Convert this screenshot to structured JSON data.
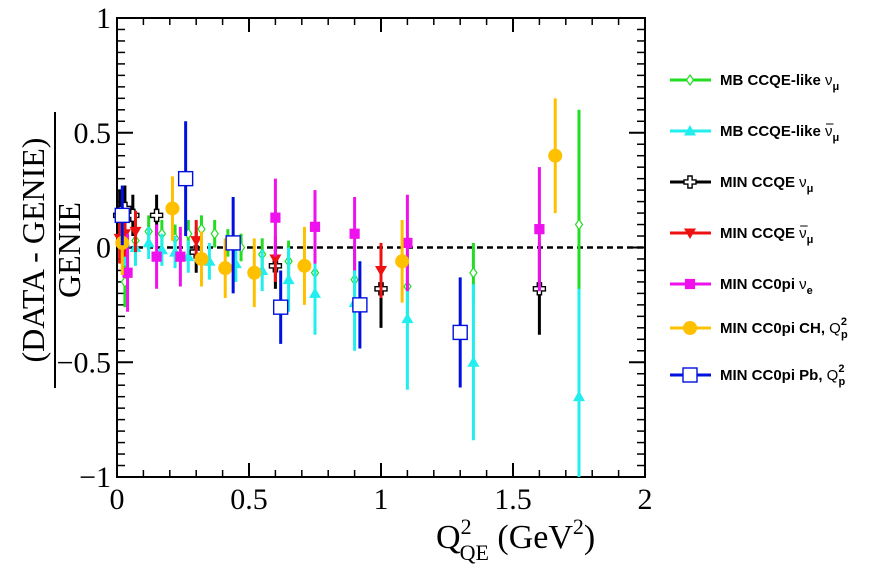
{
  "chart_data": {
    "type": "scatter",
    "title": "",
    "xlabel": "Q",
    "xlabel_sup": "2",
    "xlabel_sub": "QE",
    "xlabel_unit": " (GeV",
    "xlabel_unit_sup": "2",
    "xlabel_unit_close": ")",
    "ylabel_numerator": "(DATA - GENIE)",
    "ylabel_denominator": "GENIE",
    "xlim": [
      0,
      2
    ],
    "ylim": [
      -1,
      1
    ],
    "x_ticks": [
      "0",
      "0.5",
      "1",
      "1.5",
      "2"
    ],
    "y_ticks": [
      "1",
      "0.5",
      "0",
      "−0.5",
      "−1"
    ],
    "x_tick_values": [
      0,
      0.5,
      1,
      1.5,
      2
    ],
    "y_tick_values": [
      1,
      0.5,
      0,
      -0.5,
      -1
    ],
    "reference_line": 0,
    "series": [
      {
        "name": "MB CCQE-like",
        "nu": "ν",
        "sub": "μ",
        "bar": false,
        "color": "#22dd22",
        "marker": "open-diamond",
        "points": [
          {
            "x": 0.03,
            "y": -0.15,
            "lo": -0.26,
            "hi": -0.04
          },
          {
            "x": 0.07,
            "y": 0.03,
            "lo": -0.06,
            "hi": 0.12
          },
          {
            "x": 0.12,
            "y": 0.07,
            "lo": -0.01,
            "hi": 0.14
          },
          {
            "x": 0.17,
            "y": 0.06,
            "lo": -0.01,
            "hi": 0.12
          },
          {
            "x": 0.22,
            "y": 0.04,
            "lo": -0.03,
            "hi": 0.1
          },
          {
            "x": 0.27,
            "y": 0.06,
            "lo": 0.0,
            "hi": 0.12
          },
          {
            "x": 0.32,
            "y": 0.08,
            "lo": 0.02,
            "hi": 0.14
          },
          {
            "x": 0.37,
            "y": 0.06,
            "lo": 0.0,
            "hi": 0.12
          },
          {
            "x": 0.42,
            "y": 0.02,
            "lo": -0.04,
            "hi": 0.08
          },
          {
            "x": 0.47,
            "y": 0.0,
            "lo": -0.06,
            "hi": 0.06
          },
          {
            "x": 0.55,
            "y": -0.03,
            "lo": -0.1,
            "hi": 0.04
          },
          {
            "x": 0.65,
            "y": -0.06,
            "lo": -0.15,
            "hi": 0.03
          },
          {
            "x": 0.75,
            "y": -0.11,
            "lo": -0.22,
            "hi": 0.0
          },
          {
            "x": 0.9,
            "y": -0.14,
            "lo": -0.27,
            "hi": -0.01
          },
          {
            "x": 1.1,
            "y": -0.17,
            "lo": -0.3,
            "hi": -0.04
          },
          {
            "x": 1.35,
            "y": -0.11,
            "lo": -0.24,
            "hi": 0.02
          },
          {
            "x": 1.75,
            "y": 0.1,
            "lo": -0.4,
            "hi": 0.6
          }
        ]
      },
      {
        "name": "MB CCQE-like",
        "nu": "ν",
        "sub": "μ",
        "bar": true,
        "color": "#22eeee",
        "marker": "triangle-up",
        "points": [
          {
            "x": 0.03,
            "y": 0.02,
            "lo": -0.08,
            "hi": 0.12
          },
          {
            "x": 0.07,
            "y": 0.0,
            "lo": -0.08,
            "hi": 0.08
          },
          {
            "x": 0.12,
            "y": 0.02,
            "lo": -0.05,
            "hi": 0.09
          },
          {
            "x": 0.17,
            "y": -0.01,
            "lo": -0.08,
            "hi": 0.06
          },
          {
            "x": 0.22,
            "y": -0.02,
            "lo": -0.09,
            "hi": 0.05
          },
          {
            "x": 0.27,
            "y": -0.04,
            "lo": -0.11,
            "hi": 0.03
          },
          {
            "x": 0.35,
            "y": -0.06,
            "lo": -0.14,
            "hi": 0.02
          },
          {
            "x": 0.45,
            "y": -0.07,
            "lo": -0.15,
            "hi": 0.01
          },
          {
            "x": 0.55,
            "y": -0.1,
            "lo": -0.19,
            "hi": -0.01
          },
          {
            "x": 0.65,
            "y": -0.14,
            "lo": -0.28,
            "hi": 0.0
          },
          {
            "x": 0.75,
            "y": -0.2,
            "lo": -0.38,
            "hi": -0.02
          },
          {
            "x": 0.9,
            "y": -0.24,
            "lo": -0.45,
            "hi": -0.03
          },
          {
            "x": 1.1,
            "y": -0.31,
            "lo": -0.62,
            "hi": 0.0
          },
          {
            "x": 1.35,
            "y": -0.5,
            "lo": -0.84,
            "hi": -0.16
          },
          {
            "x": 1.75,
            "y": -0.65,
            "lo": -1.0,
            "hi": -0.18
          }
        ]
      },
      {
        "name": "MIN CCQE",
        "nu": "ν",
        "sub": "μ",
        "bar": false,
        "color": "#000000",
        "marker": "open-cross",
        "points": [
          {
            "x": 0.01,
            "y": 0.14,
            "lo": 0.03,
            "hi": 0.25
          },
          {
            "x": 0.03,
            "y": 0.17,
            "lo": 0.07,
            "hi": 0.27
          },
          {
            "x": 0.06,
            "y": 0.14,
            "lo": 0.05,
            "hi": 0.23
          },
          {
            "x": 0.15,
            "y": 0.14,
            "lo": 0.05,
            "hi": 0.23
          },
          {
            "x": 0.3,
            "y": -0.02,
            "lo": -0.11,
            "hi": 0.07
          },
          {
            "x": 0.6,
            "y": -0.08,
            "lo": -0.18,
            "hi": 0.02
          },
          {
            "x": 1.0,
            "y": -0.18,
            "lo": -0.35,
            "hi": -0.01
          },
          {
            "x": 1.6,
            "y": -0.18,
            "lo": -0.38,
            "hi": 0.02
          }
        ]
      },
      {
        "name": "MIN CCQE",
        "nu": "ν",
        "sub": "μ",
        "bar": true,
        "color": "#ee1111",
        "marker": "triangle-down",
        "points": [
          {
            "x": 0.01,
            "y": 0.04,
            "lo": -0.07,
            "hi": 0.15
          },
          {
            "x": 0.03,
            "y": 0.06,
            "lo": -0.04,
            "hi": 0.16
          },
          {
            "x": 0.07,
            "y": 0.07,
            "lo": -0.02,
            "hi": 0.16
          },
          {
            "x": 0.3,
            "y": 0.03,
            "lo": -0.06,
            "hi": 0.12
          },
          {
            "x": 0.6,
            "y": -0.05,
            "lo": -0.15,
            "hi": 0.05
          },
          {
            "x": 1.0,
            "y": -0.1,
            "lo": -0.22,
            "hi": 0.02
          }
        ]
      },
      {
        "name": "MIN CC0pi",
        "nu": "ν",
        "sub": "e",
        "bar": false,
        "color": "#ee11ee",
        "marker": "square",
        "points": [
          {
            "x": 0.04,
            "y": -0.11,
            "lo": -0.28,
            "hi": 0.06
          },
          {
            "x": 0.15,
            "y": -0.04,
            "lo": -0.18,
            "hi": 0.1
          },
          {
            "x": 0.24,
            "y": -0.04,
            "lo": -0.17,
            "hi": 0.09
          },
          {
            "x": 0.6,
            "y": 0.13,
            "lo": -0.04,
            "hi": 0.3
          },
          {
            "x": 0.75,
            "y": 0.09,
            "lo": -0.07,
            "hi": 0.25
          },
          {
            "x": 0.9,
            "y": 0.06,
            "lo": -0.1,
            "hi": 0.22
          },
          {
            "x": 1.1,
            "y": 0.02,
            "lo": -0.19,
            "hi": 0.23
          },
          {
            "x": 1.6,
            "y": 0.08,
            "lo": -0.19,
            "hi": 0.35
          }
        ]
      },
      {
        "name": "MIN CC0pi CH,",
        "nu": "Q",
        "sub": "p",
        "sup": "2",
        "bar": false,
        "color": "#ffc000",
        "marker": "circle",
        "points": [
          {
            "x": 0.02,
            "y": 0.02,
            "lo": -0.12,
            "hi": 0.16
          },
          {
            "x": 0.21,
            "y": 0.17,
            "lo": 0.03,
            "hi": 0.31
          },
          {
            "x": 0.32,
            "y": -0.05,
            "lo": -0.17,
            "hi": 0.07
          },
          {
            "x": 0.41,
            "y": -0.09,
            "lo": -0.22,
            "hi": 0.04
          },
          {
            "x": 0.52,
            "y": -0.11,
            "lo": -0.26,
            "hi": 0.04
          },
          {
            "x": 0.71,
            "y": -0.08,
            "lo": -0.25,
            "hi": 0.09
          },
          {
            "x": 1.08,
            "y": -0.06,
            "lo": -0.24,
            "hi": 0.12
          },
          {
            "x": 1.66,
            "y": 0.4,
            "lo": 0.15,
            "hi": 0.65
          }
        ]
      },
      {
        "name": "MIN CC0pi Pb,",
        "nu": "Q",
        "sub": "p",
        "sup": "2",
        "bar": false,
        "color": "#0011dd",
        "marker": "open-square",
        "points": [
          {
            "x": 0.02,
            "y": 0.14,
            "lo": 0.01,
            "hi": 0.27
          },
          {
            "x": 0.26,
            "y": 0.3,
            "lo": 0.05,
            "hi": 0.55
          },
          {
            "x": 0.44,
            "y": 0.02,
            "lo": -0.2,
            "hi": 0.22
          },
          {
            "x": 0.62,
            "y": -0.26,
            "lo": -0.42,
            "hi": -0.1
          },
          {
            "x": 0.92,
            "y": -0.25,
            "lo": -0.44,
            "hi": -0.06
          },
          {
            "x": 1.3,
            "y": -0.37,
            "lo": -0.61,
            "hi": -0.13
          }
        ]
      }
    ]
  }
}
